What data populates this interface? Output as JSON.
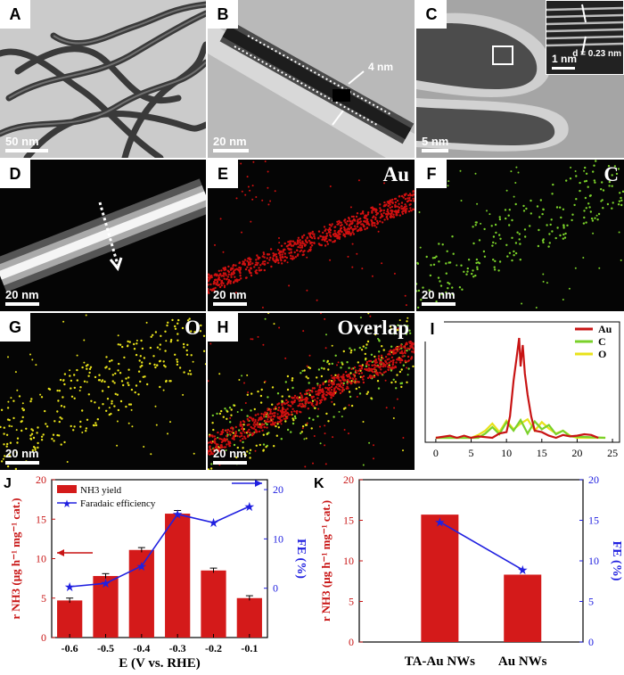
{
  "panels": {
    "A": {
      "letter": "A",
      "scale": "50 nm"
    },
    "B": {
      "letter": "B",
      "scale": "20 nm",
      "annotation": "4 nm"
    },
    "C": {
      "letter": "C",
      "scale": "5 nm",
      "inset_scale": "1 nm",
      "inset_label": "d = 0.23 nm"
    },
    "D": {
      "letter": "D",
      "scale": "20 nm"
    },
    "E": {
      "letter": "E",
      "scale": "20 nm",
      "title": "Au"
    },
    "F": {
      "letter": "F",
      "scale": "20 nm",
      "title": "C"
    },
    "G": {
      "letter": "G",
      "scale": "20 nm",
      "title": "O"
    },
    "H": {
      "letter": "H",
      "scale": "20 nm",
      "title": "Overlap"
    },
    "I": {
      "letter": "I"
    },
    "J": {
      "letter": "J"
    },
    "K": {
      "letter": "K"
    }
  },
  "colors": {
    "au": "#d01010",
    "c": "#7ad12a",
    "o": "#e8e21a",
    "bar": "#d41a1a",
    "line": "#2020e0"
  },
  "chart_data": [
    {
      "id": "I",
      "type": "line",
      "x_ticks": [
        0,
        5,
        10,
        15,
        20,
        25
      ],
      "xlim": [
        -1.5,
        26
      ],
      "legend": [
        "Au",
        "C",
        "O"
      ],
      "legend_position": "top-right",
      "series": [
        {
          "name": "Au",
          "color": "#c81414",
          "x": [
            0,
            2,
            3,
            4,
            5,
            6,
            8,
            9,
            10,
            10.5,
            11,
            11.4,
            11.8,
            12,
            12.3,
            12.6,
            13,
            13.5,
            14,
            15,
            16,
            17,
            18,
            19,
            20,
            21,
            22,
            23
          ],
          "y": [
            0,
            0.3,
            0,
            0.3,
            0,
            0.2,
            0,
            0.6,
            0.8,
            3,
            8,
            11,
            14,
            10,
            13,
            9,
            6,
            3,
            1,
            0.8,
            0.3,
            0,
            0.4,
            0.2,
            0.3,
            0.5,
            0.4,
            0
          ]
        },
        {
          "name": "C",
          "color": "#7ad12a",
          "x": [
            0,
            6,
            7,
            8,
            9,
            10,
            11,
            12,
            13,
            14,
            15,
            16,
            17,
            18,
            19,
            24
          ],
          "y": [
            0,
            0,
            0.6,
            1.5,
            0.5,
            2.2,
            1,
            2.5,
            0.6,
            2.3,
            1.2,
            1.8,
            0.5,
            1,
            0.2,
            0
          ]
        },
        {
          "name": "O",
          "color": "#e8e21a",
          "x": [
            0,
            5,
            6,
            7,
            8,
            9,
            10,
            11,
            12,
            13,
            14,
            15,
            16,
            17,
            18,
            19,
            20,
            24
          ],
          "y": [
            0,
            0,
            0.4,
            1,
            2,
            0.8,
            2.4,
            1.2,
            2,
            2.6,
            1,
            2.2,
            1.3,
            0.6,
            1,
            0.3,
            0,
            0
          ]
        }
      ]
    },
    {
      "id": "J",
      "type": "bar",
      "categories": [
        "-0.6",
        "-0.5",
        "-0.4",
        "-0.3",
        "-0.2",
        "-0.1"
      ],
      "xlabel": "E (V vs. RHE)",
      "ylabel_left": "r NH3 (μg h⁻¹ mg⁻¹ cat.)",
      "ylabel_right": "FE (%)",
      "ylim": [
        0,
        20
      ],
      "y_ticks": [
        0,
        5,
        10,
        15,
        20
      ],
      "y2lim": [
        -10,
        22
      ],
      "y2_ticks": [
        0,
        10,
        20
      ],
      "series": [
        {
          "name": "NH3 yield",
          "type": "bar",
          "values": [
            4.7,
            7.8,
            11.1,
            15.7,
            8.5,
            5.0
          ],
          "errors": [
            0.3,
            0.3,
            0.3,
            0.4,
            0.3,
            0.3
          ]
        },
        {
          "name": "Faradaic efficiency",
          "type": "line",
          "values": [
            0.3,
            1.0,
            4.5,
            15.0,
            13.3,
            16.6
          ]
        }
      ],
      "legend_position": "top-left"
    },
    {
      "id": "K",
      "type": "bar",
      "categories": [
        "TA-Au NWs",
        "Au NWs"
      ],
      "ylabel_left": "r NH3 (μg h⁻¹ mg⁻¹ cat.)",
      "ylabel_right": "FE (%)",
      "ylim": [
        0,
        20
      ],
      "y_ticks": [
        0,
        5,
        10,
        15,
        20
      ],
      "y2lim": [
        0,
        20
      ],
      "y2_ticks": [
        0,
        5,
        10,
        15,
        20
      ],
      "series": [
        {
          "name": "NH3 yield",
          "type": "bar",
          "values": [
            15.7,
            8.3
          ]
        },
        {
          "name": "FE",
          "type": "line",
          "values": [
            14.8,
            8.9
          ]
        }
      ]
    }
  ]
}
